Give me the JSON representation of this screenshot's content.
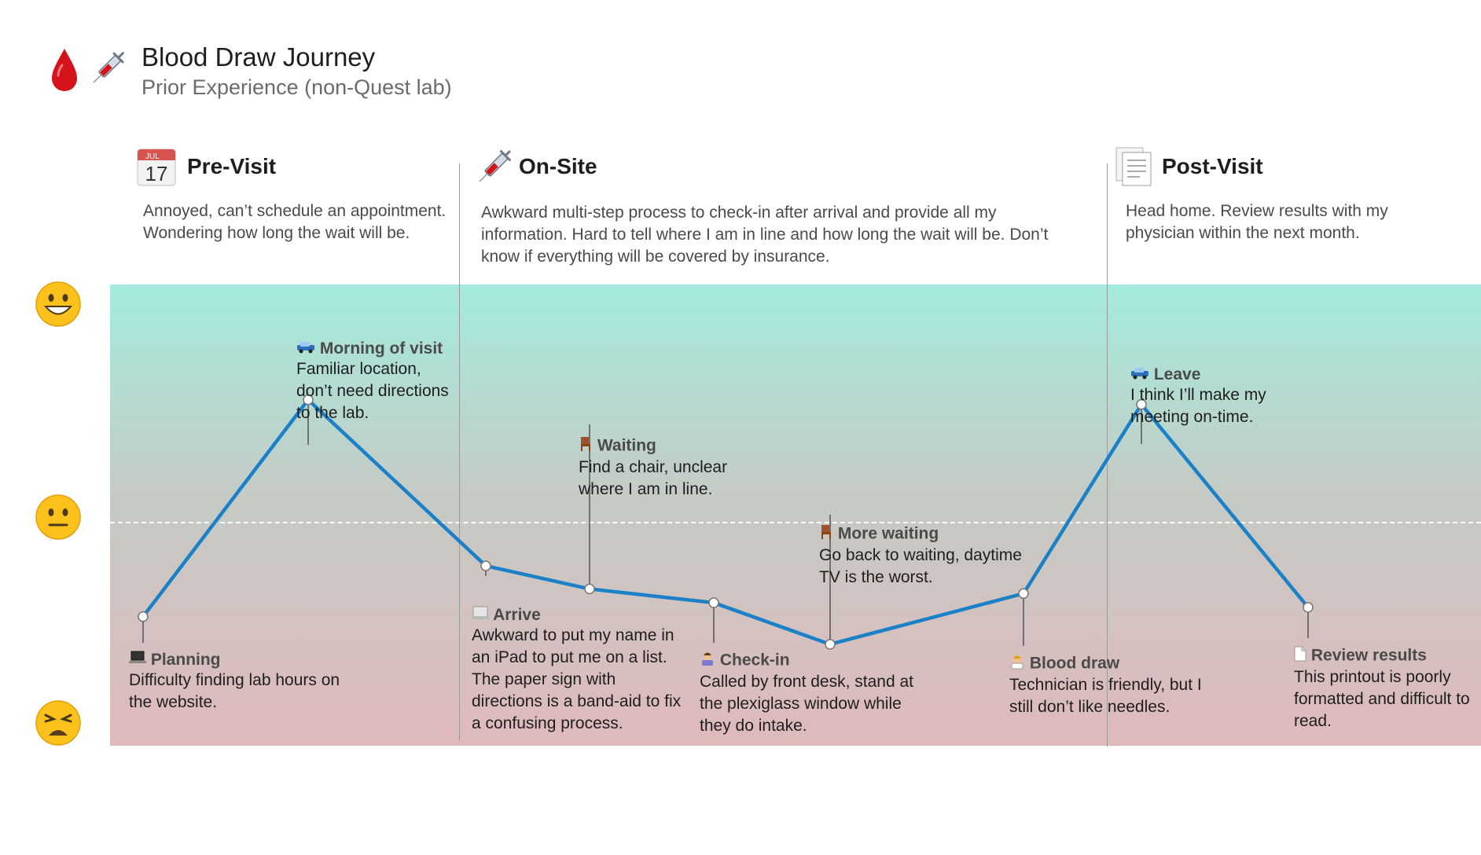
{
  "title": "Blood Draw Journey",
  "subtitle": "Prior Experience (non-Quest lab)",
  "header_icons": [
    "blood-drop-icon",
    "syringe-icon"
  ],
  "calendar_icon": {
    "month": "JUL",
    "day": "17"
  },
  "phases": [
    {
      "id": "pre",
      "title": "Pre-Visit",
      "icon": "calendar-icon",
      "description": "Annoyed, can’t schedule an appointment. Wondering how long the wait will be."
    },
    {
      "id": "onsite",
      "title": "On-Site",
      "icon": "syringe-icon",
      "description": "Awkward multi-step process to check-in after arrival and provide all my information. Hard to tell where I am in line and how long the wait will be. Don’t know if everything will be covered by insurance."
    },
    {
      "id": "post",
      "title": "Post-Visit",
      "icon": "document-icon",
      "description": "Head home. Review results with my physician within the next month."
    }
  ],
  "emotion_scale": [
    "grinning-face-icon",
    "neutral-face-icon",
    "weary-face-icon"
  ],
  "colors": {
    "line": "#1a80c8",
    "band_top": "#a4ebde",
    "band_bottom": "#e0b9bb",
    "divider": "#9a9a9a"
  },
  "touchpoints": [
    {
      "title": "Planning",
      "icon": "laptop-icon",
      "text": "Difficulty finding lab hours on the website.",
      "emotion": 0.28
    },
    {
      "title": "Morning of visit",
      "icon": "car-icon",
      "text": "Familiar location, don’t need directions to the lab.",
      "emotion": 0.75
    },
    {
      "title": "Arrive",
      "icon": "tablet-icon",
      "text": "Awkward to put my name in an iPad to put me on a list. The paper sign with directions is a band-aid to fix a confusing process.",
      "emotion": 0.39
    },
    {
      "title": "Waiting",
      "icon": "chair-icon",
      "text": "Find a chair, unclear where I am in line.",
      "emotion": 0.34
    },
    {
      "title": "Check-in",
      "icon": "receptionist-icon",
      "text": "Called by front desk, stand at the plexiglass window while they do intake.",
      "emotion": 0.31
    },
    {
      "title": "More waiting",
      "icon": "chair-icon",
      "text": "Go back to waiting, daytime TV is the worst.",
      "emotion": 0.22
    },
    {
      "title": "Blood draw",
      "icon": "technician-icon",
      "text": "Technician is friendly, but I still don’t like needles.",
      "emotion": 0.33
    },
    {
      "title": "Leave",
      "icon": "car-icon",
      "text": "I think I’ll make my meeting on-time.",
      "emotion": 0.74
    },
    {
      "title": "Review results",
      "icon": "page-icon",
      "text": "This printout is poorly formatted and difficult to read.",
      "emotion": 0.3
    }
  ]
}
